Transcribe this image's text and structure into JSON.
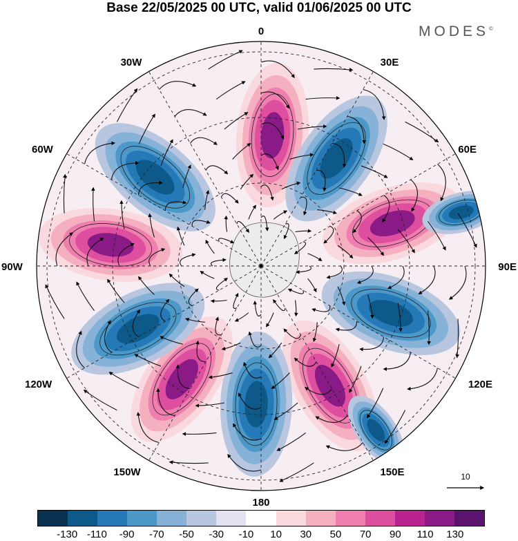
{
  "title": "Base 22/05/2025 00 UTC, valid 01/06/2025 00 UTC",
  "brand": {
    "text": "MODES",
    "mark": "©"
  },
  "map": {
    "projection": "south-polar-stereographic",
    "longitude_labels": {
      "lon_0": "0",
      "lon_30e": "30E",
      "lon_60e": "60E",
      "lon_90e": "90E",
      "lon_120e": "120E",
      "lon_150e": "150E",
      "lon_180": "180",
      "lon_150w": "150W",
      "lon_120w": "120W",
      "lon_90w": "90W",
      "lon_60w": "60W",
      "lon_30w": "30W"
    },
    "field": "anomaly shaded with wind streamlines",
    "pattern": "wavenumber-5 alternating positive/negative anomaly cells around Antarctica"
  },
  "reference_vector": {
    "value": "10"
  },
  "colorbar": {
    "colors": [
      "#08324f",
      "#0d5a8a",
      "#2479b6",
      "#4b98c9",
      "#86b2d8",
      "#b9c6e0",
      "#e2e2f0",
      "#ffffff",
      "#fad9de",
      "#f5b0c0",
      "#ef7fae",
      "#df4fa0",
      "#b8238f",
      "#8a1a86",
      "#5a1470"
    ],
    "tick_labels": [
      "-130",
      "-110",
      "-90",
      "-70",
      "-50",
      "-30",
      "-10",
      "10",
      "30",
      "50",
      "70",
      "90",
      "110",
      "130"
    ]
  }
}
